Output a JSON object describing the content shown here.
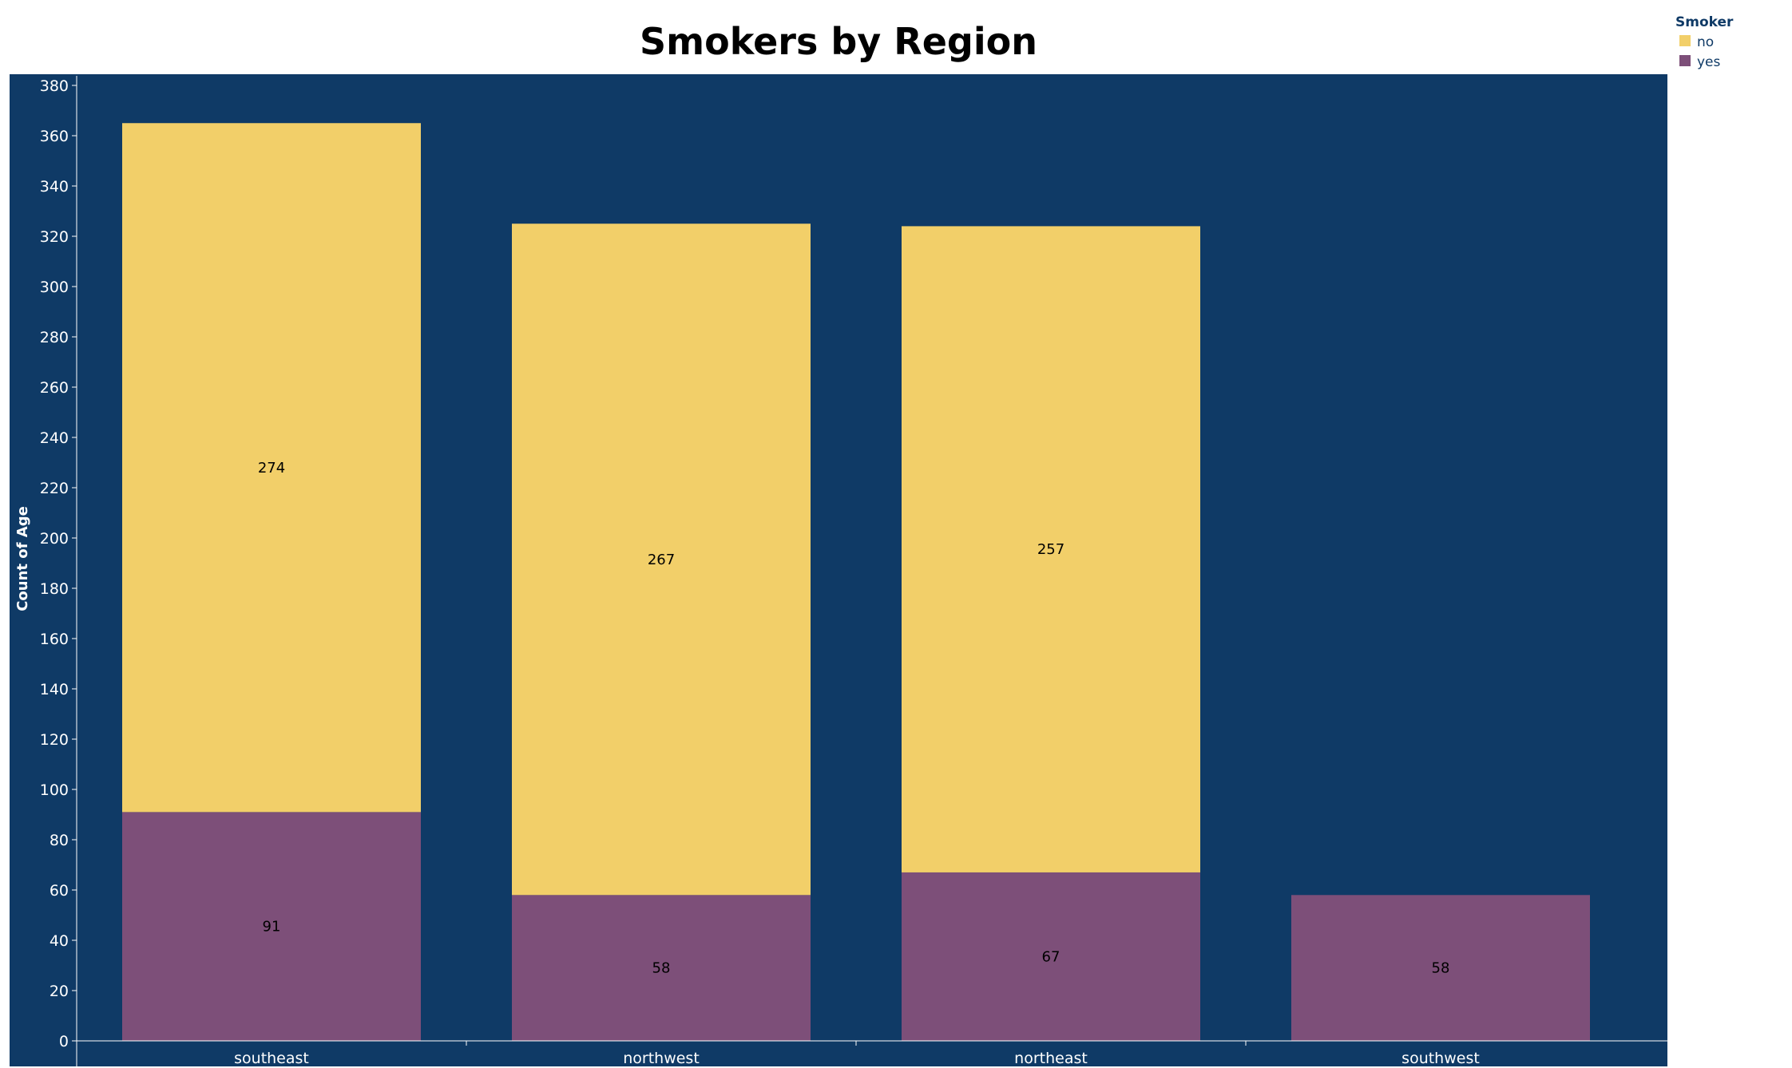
{
  "chart_data": {
    "type": "bar",
    "stacked": true,
    "title": "Smokers by Region",
    "xlabel": "",
    "ylabel": "Count of Age",
    "ylim": [
      0,
      380
    ],
    "yticks": [
      0,
      20,
      40,
      60,
      80,
      100,
      120,
      140,
      160,
      180,
      200,
      220,
      240,
      260,
      280,
      300,
      320,
      340,
      360,
      380
    ],
    "categories": [
      "southeast",
      "northwest",
      "northeast",
      "southwest"
    ],
    "series": [
      {
        "name": "yes",
        "values": [
          91,
          58,
          67,
          58
        ],
        "color": "#7d4f79"
      },
      {
        "name": "no",
        "values": [
          274,
          267,
          257,
          0
        ],
        "color": "#f2cf69"
      }
    ],
    "legend": {
      "title": "Smoker",
      "placement": "top-right",
      "items": [
        {
          "label": "no",
          "color": "#f2cf69"
        },
        {
          "label": "yes",
          "color": "#7d4f79"
        }
      ]
    },
    "plot_background": "#0f3a66",
    "legend_text_color": "#0f3a66",
    "grid": false
  }
}
